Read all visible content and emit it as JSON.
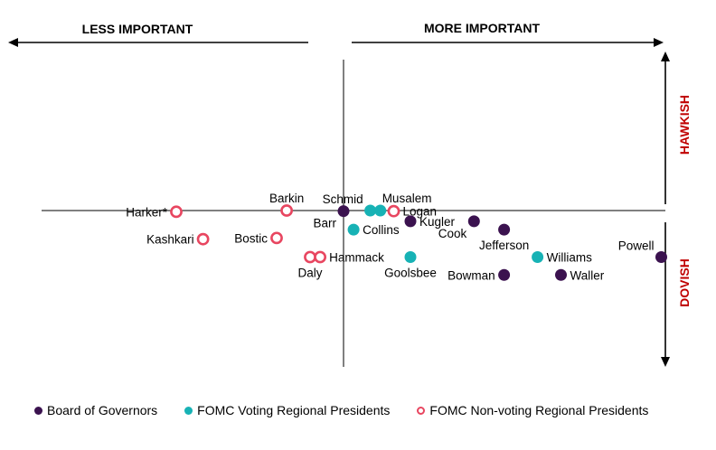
{
  "chart_data": {
    "type": "scatter",
    "top_left_label": "LESS IMPORTANT",
    "top_right_label": "MORE IMPORTANT",
    "right_top_label": "HAWKISH",
    "right_bottom_label": "DOVISH",
    "xlim": [
      -10,
      10
    ],
    "ylim": [
      -10,
      10
    ],
    "colors": {
      "governors": "#3b124f",
      "voting": "#17b2b5",
      "nonvoting": "#e84660"
    },
    "series": [
      {
        "name": "Board of Governors",
        "key": "governors",
        "style": "filled"
      },
      {
        "name": "FOMC Voting Regional Presidents",
        "key": "voting",
        "style": "filled"
      },
      {
        "name": "FOMC Non-voting Regional Presidents",
        "key": "nonvoting",
        "style": "hollow"
      }
    ],
    "points": [
      {
        "label": "Harker*",
        "group": "nonvoting",
        "x": -5.0,
        "y": -0.1,
        "lpos": "left"
      },
      {
        "label": "Barkin",
        "group": "nonvoting",
        "x": -1.7,
        "y": 0.0,
        "lpos": "above"
      },
      {
        "label": "Kashkari",
        "group": "nonvoting",
        "x": -4.2,
        "y": -2.4,
        "lpos": "left"
      },
      {
        "label": "Bostic",
        "group": "nonvoting",
        "x": -2.0,
        "y": -2.3,
        "lpos": "left"
      },
      {
        "label": "Daly",
        "group": "nonvoting",
        "x": -1.0,
        "y": -3.9,
        "lpos": "below"
      },
      {
        "label": "Hammack",
        "group": "nonvoting",
        "x": -0.7,
        "y": -3.9,
        "lpos": "right"
      },
      {
        "label": "Logan",
        "group": "nonvoting",
        "x": 1.5,
        "y": -0.05,
        "lpos": "right"
      },
      {
        "label": "Barr",
        "group": "governors",
        "x": 0.0,
        "y": -0.05,
        "lpos": "lowleft"
      },
      {
        "label": "Schmid",
        "group": "voting",
        "x": 0.8,
        "y": 0.0,
        "lpos": "upleft"
      },
      {
        "label": "Musalem",
        "group": "voting",
        "x": 1.1,
        "y": 0.0,
        "lpos": "upright"
      },
      {
        "label": "Kugler",
        "group": "governors",
        "x": 2.0,
        "y": -0.9,
        "lpos": "right"
      },
      {
        "label": "Collins",
        "group": "voting",
        "x": 0.3,
        "y": -1.6,
        "lpos": "right"
      },
      {
        "label": "Cook",
        "group": "governors",
        "x": 3.9,
        "y": -0.9,
        "lpos": "lowleft"
      },
      {
        "label": "Jefferson",
        "group": "governors",
        "x": 4.8,
        "y": -1.6,
        "lpos": "below"
      },
      {
        "label": "Goolsbee",
        "group": "voting",
        "x": 2.0,
        "y": -3.9,
        "lpos": "below"
      },
      {
        "label": "Williams",
        "group": "voting",
        "x": 5.8,
        "y": -3.9,
        "lpos": "right"
      },
      {
        "label": "Bowman",
        "group": "governors",
        "x": 4.8,
        "y": -5.4,
        "lpos": "left"
      },
      {
        "label": "Waller",
        "group": "governors",
        "x": 6.5,
        "y": -5.4,
        "lpos": "right"
      },
      {
        "label": "Powell",
        "group": "governors",
        "x": 9.5,
        "y": -3.9,
        "lpos": "upleft"
      }
    ]
  }
}
